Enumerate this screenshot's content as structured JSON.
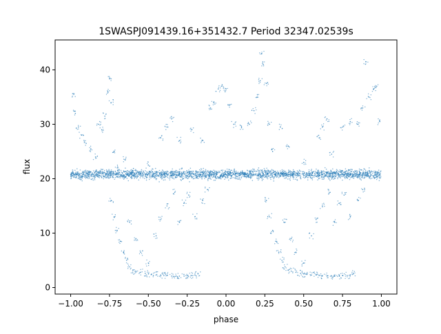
{
  "chart_data": {
    "type": "scatter",
    "title": "1SWASPJ091439.16+351432.7 Period 32347.02539s",
    "xlabel": "phase",
    "ylabel": "flux",
    "xlim": [
      -1.1,
      1.1
    ],
    "ylim": [
      -1.2,
      45.5
    ],
    "xticks": [
      -1.0,
      -0.75,
      -0.5,
      -0.25,
      0.0,
      0.25,
      0.5,
      0.75,
      1.0
    ],
    "xtick_labels": [
      "−1.00",
      "−0.75",
      "−0.50",
      "−0.25",
      "0.00",
      "0.25",
      "0.50",
      "0.75",
      "1.00"
    ],
    "yticks": [
      0,
      10,
      20,
      30,
      40
    ],
    "ytick_labels": [
      "0",
      "10",
      "20",
      "30",
      "40"
    ],
    "grid": false,
    "legend": "none",
    "marker_color": "#1f77b4",
    "series": [
      {
        "baseline": 20.8,
        "scatter": 0.6,
        "points": [
          [
            -0.98,
            35.5
          ],
          [
            -0.97,
            32.0
          ],
          [
            -0.95,
            29.5
          ],
          [
            -0.93,
            28.0
          ],
          [
            -0.9,
            26.5
          ],
          [
            -0.87,
            25.5
          ],
          [
            -0.84,
            24.0
          ],
          [
            -0.82,
            30.0
          ],
          [
            -0.8,
            29.0
          ],
          [
            -0.78,
            31.5
          ],
          [
            -0.76,
            36.0
          ],
          [
            -0.75,
            38.5
          ],
          [
            -0.74,
            34.0
          ],
          [
            -0.72,
            25.0
          ],
          [
            -0.7,
            22.0
          ],
          [
            -0.65,
            23.5
          ],
          [
            -0.6,
            21.5
          ],
          [
            -0.5,
            22.5
          ],
          [
            -0.42,
            27.5
          ],
          [
            -0.38,
            29.5
          ],
          [
            -0.35,
            31.0
          ],
          [
            -0.3,
            27.0
          ],
          [
            -0.22,
            29.0
          ],
          [
            -0.15,
            27.0
          ],
          [
            -0.1,
            33.0
          ],
          [
            -0.08,
            34.0
          ],
          [
            -0.05,
            36.5
          ],
          [
            -0.03,
            37.0
          ],
          [
            0.0,
            36.5
          ],
          [
            0.02,
            33.5
          ],
          [
            0.05,
            30.0
          ],
          [
            0.1,
            29.5
          ],
          [
            0.15,
            30.0
          ],
          [
            0.18,
            32.5
          ],
          [
            0.2,
            35.0
          ],
          [
            0.22,
            38.0
          ],
          [
            0.23,
            43.0
          ],
          [
            0.24,
            41.0
          ],
          [
            0.26,
            37.5
          ],
          [
            0.28,
            30.0
          ],
          [
            0.3,
            25.0
          ],
          [
            0.35,
            29.5
          ],
          [
            0.4,
            26.0
          ],
          [
            0.5,
            23.0
          ],
          [
            0.6,
            27.5
          ],
          [
            0.62,
            29.5
          ],
          [
            0.65,
            31.0
          ],
          [
            0.68,
            24.5
          ],
          [
            0.75,
            29.5
          ],
          [
            0.8,
            30.5
          ],
          [
            0.85,
            30.0
          ],
          [
            0.88,
            33.0
          ],
          [
            0.9,
            41.5
          ],
          [
            0.92,
            35.0
          ],
          [
            0.95,
            36.5
          ],
          [
            0.97,
            37.0
          ],
          [
            0.99,
            30.5
          ],
          [
            -0.74,
            16.0
          ],
          [
            -0.72,
            13.0
          ],
          [
            -0.7,
            10.5
          ],
          [
            -0.68,
            8.5
          ],
          [
            -0.66,
            6.5
          ],
          [
            -0.64,
            5.0
          ],
          [
            -0.62,
            3.8
          ],
          [
            -0.6,
            3.2
          ],
          [
            -0.58,
            3.0
          ],
          [
            -0.55,
            2.8
          ],
          [
            -0.52,
            2.6
          ],
          [
            -0.5,
            2.5
          ],
          [
            -0.48,
            2.4
          ],
          [
            -0.45,
            2.3
          ],
          [
            -0.42,
            2.3
          ],
          [
            -0.4,
            2.2
          ],
          [
            -0.38,
            2.2
          ],
          [
            -0.35,
            2.1
          ],
          [
            -0.32,
            2.1
          ],
          [
            -0.3,
            2.1
          ],
          [
            -0.27,
            2.1
          ],
          [
            -0.25,
            2.2
          ],
          [
            -0.22,
            2.2
          ],
          [
            -0.2,
            2.3
          ],
          [
            -0.18,
            2.5
          ],
          [
            -0.62,
            12.0
          ],
          [
            -0.58,
            9.0
          ],
          [
            -0.55,
            6.5
          ],
          [
            -0.5,
            4.5
          ],
          [
            -0.45,
            9.5
          ],
          [
            -0.42,
            12.5
          ],
          [
            -0.38,
            15.0
          ],
          [
            -0.33,
            17.5
          ],
          [
            -0.3,
            12.0
          ],
          [
            -0.27,
            15.5
          ],
          [
            -0.24,
            17.0
          ],
          [
            -0.2,
            13.0
          ],
          [
            -0.15,
            16.0
          ],
          [
            -0.12,
            18.0
          ],
          [
            0.26,
            16.0
          ],
          [
            0.28,
            13.0
          ],
          [
            0.3,
            10.5
          ],
          [
            0.32,
            8.5
          ],
          [
            0.34,
            6.5
          ],
          [
            0.36,
            5.0
          ],
          [
            0.38,
            3.8
          ],
          [
            0.4,
            3.2
          ],
          [
            0.42,
            3.0
          ],
          [
            0.45,
            2.8
          ],
          [
            0.48,
            2.6
          ],
          [
            0.5,
            2.5
          ],
          [
            0.52,
            2.4
          ],
          [
            0.55,
            2.3
          ],
          [
            0.58,
            2.3
          ],
          [
            0.6,
            2.2
          ],
          [
            0.62,
            2.2
          ],
          [
            0.65,
            2.1
          ],
          [
            0.68,
            2.1
          ],
          [
            0.7,
            2.1
          ],
          [
            0.73,
            2.1
          ],
          [
            0.75,
            2.2
          ],
          [
            0.78,
            2.2
          ],
          [
            0.8,
            2.3
          ],
          [
            0.82,
            2.5
          ],
          [
            0.38,
            12.0
          ],
          [
            0.42,
            9.0
          ],
          [
            0.45,
            6.5
          ],
          [
            0.5,
            4.5
          ],
          [
            0.55,
            9.5
          ],
          [
            0.58,
            12.5
          ],
          [
            0.62,
            15.0
          ],
          [
            0.67,
            17.5
          ],
          [
            0.7,
            12.0
          ],
          [
            0.73,
            15.5
          ],
          [
            0.76,
            17.0
          ],
          [
            0.8,
            13.0
          ],
          [
            0.85,
            16.0
          ],
          [
            0.88,
            18.0
          ]
        ]
      }
    ]
  }
}
